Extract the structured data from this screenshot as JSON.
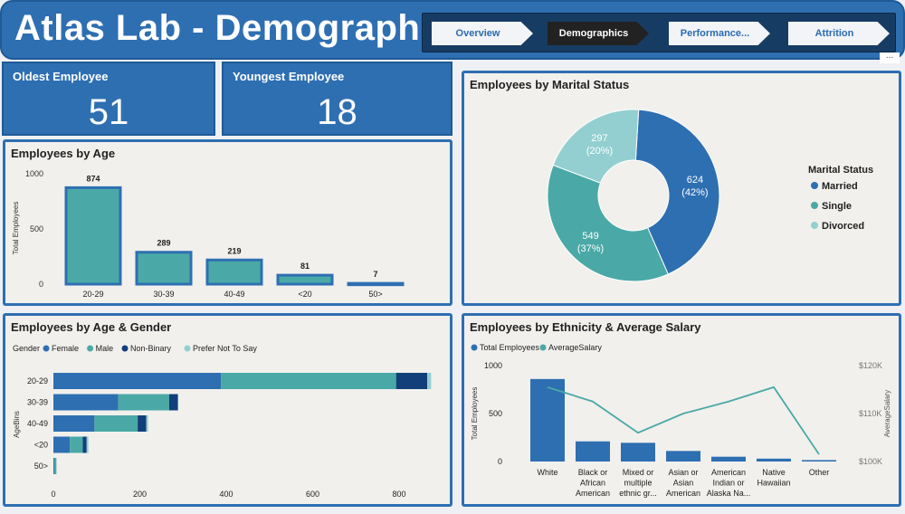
{
  "header": {
    "title": "Atlas Lab - Demographics",
    "tabs": [
      {
        "label": "Overview",
        "active": false
      },
      {
        "label": "Demographics",
        "active": true
      },
      {
        "label": "Performance...",
        "active": false
      },
      {
        "label": "Attrition",
        "active": false
      }
    ],
    "more_label": "..."
  },
  "kpis": {
    "oldest": {
      "label": "Oldest Employee",
      "value": "51"
    },
    "youngest": {
      "label": "Youngest Employee",
      "value": "18"
    }
  },
  "colors": {
    "primary": "#2e6fb2",
    "teal": "#4aa9a6",
    "navy": "#123f7a",
    "light_teal": "#93cfd0",
    "bar_fill": "#4aa9a6",
    "card_bg": "#f1f0ed"
  },
  "chart_data": [
    {
      "id": "age",
      "type": "bar",
      "title": "Employees by Age",
      "ylabel": "Total Employees",
      "ylim": [
        0,
        1000
      ],
      "yticks": [
        "1000",
        "500",
        "0"
      ],
      "categories": [
        "20-29",
        "30-39",
        "40-49",
        "<20",
        "50>"
      ],
      "values": [
        874,
        289,
        219,
        81,
        7
      ]
    },
    {
      "id": "marital",
      "type": "pie",
      "title": "Employees by Marital Status",
      "legend_title": "Marital Status",
      "legend_position": "right",
      "slices": [
        {
          "name": "Married",
          "value": 624,
          "label": "624",
          "pct": "(42%)"
        },
        {
          "name": "Single",
          "value": 549,
          "label": "549",
          "pct": "(37%)"
        },
        {
          "name": "Divorced",
          "value": 297,
          "label": "297",
          "pct": "(20%)"
        }
      ]
    },
    {
      "id": "age_gender",
      "type": "bar",
      "orientation": "horizontal",
      "stacked": true,
      "title": "Employees by Age & Gender",
      "legend_title": "Gender",
      "ylabel": "AgeBins",
      "categories": [
        "20-29",
        "30-39",
        "40-49",
        "<20",
        "50>"
      ],
      "xlim": [
        0,
        880
      ],
      "xticks": [
        "0",
        "200",
        "400",
        "600",
        "800"
      ],
      "series": [
        {
          "name": "Female",
          "values": [
            388,
            150,
            95,
            38,
            2
          ]
        },
        {
          "name": "Male",
          "values": [
            405,
            118,
            100,
            30,
            5
          ]
        },
        {
          "name": "Non-Binary",
          "values": [
            72,
            20,
            20,
            9,
            0
          ]
        },
        {
          "name": "Prefer Not To Say",
          "values": [
            9,
            1,
            4,
            4,
            0
          ]
        }
      ]
    },
    {
      "id": "ethnicity",
      "type": "bar",
      "title": "Employees by Ethnicity & Average Salary",
      "ylabel": "Total Employees",
      "y2label": "AverageSalary",
      "ylim": [
        0,
        1000
      ],
      "yticks": [
        "1000",
        "500",
        "0"
      ],
      "y2lim": [
        100000,
        120000
      ],
      "y2ticks": [
        "$120K",
        "$110K",
        "$100K"
      ],
      "categories": [
        [
          "White"
        ],
        [
          "Black or",
          "African",
          "American"
        ],
        [
          "Mixed or",
          "multiple",
          "ethnic gr..."
        ],
        [
          "Asian or",
          "Asian",
          "American"
        ],
        [
          "American",
          "Indian or",
          "Alaska Na..."
        ],
        [
          "Native",
          "Hawaiian"
        ],
        [
          "Other"
        ]
      ],
      "series": [
        {
          "name": "Total Employees",
          "type": "bar",
          "values": [
            860,
            210,
            195,
            110,
            50,
            30,
            15
          ]
        },
        {
          "name": "AverageSalary",
          "type": "line",
          "values": [
            115500,
            112500,
            106000,
            110000,
            112500,
            115500,
            101500
          ]
        }
      ]
    }
  ]
}
